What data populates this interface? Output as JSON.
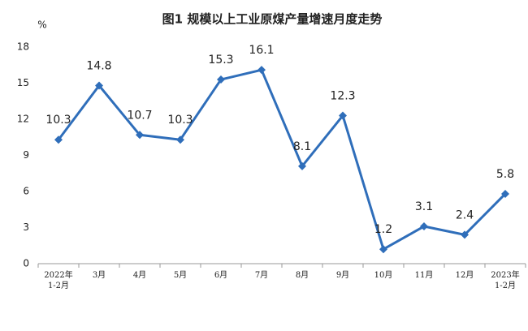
{
  "chart_data": {
    "type": "line",
    "title": "图1  规模以上工业原煤产量增速月度走势",
    "y_label": "%",
    "categories": [
      "2022年\n1-2月",
      "3月",
      "4月",
      "5月",
      "6月",
      "7月",
      "8月",
      "9月",
      "10月",
      "11月",
      "12月",
      "2023年\n1-2月"
    ],
    "values": [
      10.3,
      14.8,
      10.7,
      10.3,
      15.3,
      16.1,
      8.1,
      12.3,
      1.2,
      3.1,
      2.4,
      5.8
    ],
    "color": "#2f6eba",
    "ylim": [
      0,
      18
    ],
    "yticks": [
      0,
      3,
      6,
      9,
      12,
      15,
      18
    ],
    "grid": false
  }
}
